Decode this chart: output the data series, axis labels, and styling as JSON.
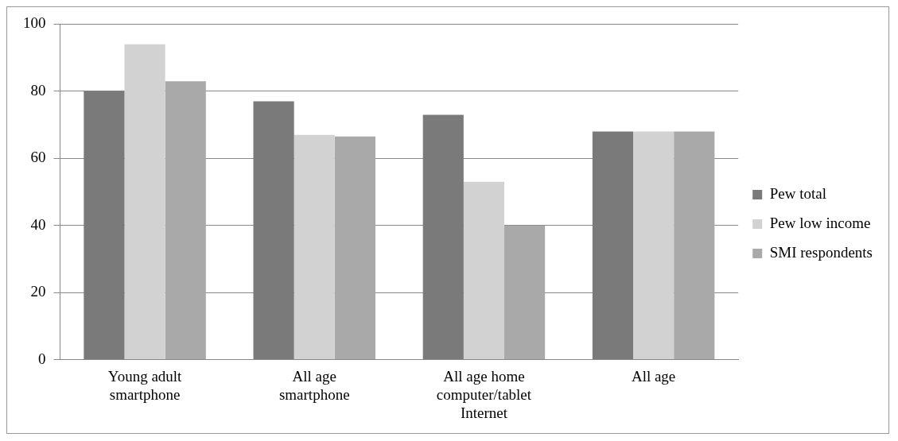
{
  "chart_data": {
    "type": "bar",
    "categories": [
      "Young adult smartphone",
      "All age smartphone",
      "All age home computer/tablet Internet",
      "All age"
    ],
    "series": [
      {
        "name": "Pew total",
        "color": "#7a7a7a",
        "values": [
          80,
          77,
          73,
          68
        ]
      },
      {
        "name": "Pew low income",
        "color": "#d2d2d2",
        "values": [
          94,
          67,
          53,
          68
        ]
      },
      {
        "name": "SMI respondents",
        "color": "#a9a9a9",
        "values": [
          83,
          66.5,
          40,
          68
        ]
      }
    ],
    "ylim": [
      0,
      100
    ],
    "yticks": [
      0,
      20,
      40,
      60,
      80,
      100
    ],
    "grid": "y",
    "legend": "right"
  }
}
